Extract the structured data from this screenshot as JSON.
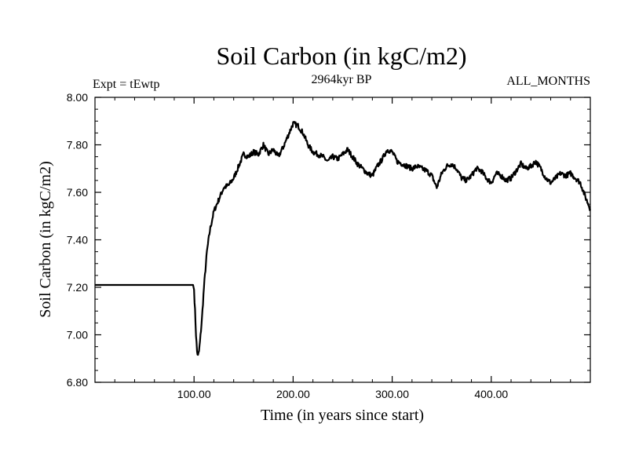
{
  "chart_data": {
    "type": "line",
    "title": "Soil Carbon (in kgC/m2)",
    "subtitle": "2964kyr BP",
    "left_label": "Expt = tEwtp",
    "right_label": "ALL_MONTHS",
    "xlabel": "Time (in years since start)",
    "ylabel": "Soil Carbon (in kgC/m2)",
    "xlim": [
      0,
      500
    ],
    "ylim": [
      6.8,
      8.0
    ],
    "x_ticks": [
      {
        "value": 100,
        "label": "100.00"
      },
      {
        "value": 200,
        "label": "200.00"
      },
      {
        "value": 300,
        "label": "300.00"
      },
      {
        "value": 400,
        "label": "400.00"
      }
    ],
    "y_ticks": [
      {
        "value": 6.8,
        "label": "6.80"
      },
      {
        "value": 7.0,
        "label": "7.00"
      },
      {
        "value": 7.2,
        "label": "7.20"
      },
      {
        "value": 7.4,
        "label": "7.40"
      },
      {
        "value": 7.6,
        "label": "7.60"
      },
      {
        "value": 7.8,
        "label": "7.80"
      },
      {
        "value": 8.0,
        "label": "8.00"
      }
    ],
    "grid": false,
    "series": [
      {
        "color": "#000000",
        "x": [
          0,
          99,
          100,
          101,
          102,
          103,
          104,
          105,
          106,
          108,
          110,
          113,
          116,
          120,
          125,
          130,
          135,
          140,
          145,
          150,
          155,
          160,
          165,
          170,
          175,
          180,
          185,
          190,
          195,
          200,
          205,
          210,
          215,
          220,
          225,
          230,
          235,
          240,
          245,
          250,
          255,
          260,
          265,
          270,
          275,
          280,
          285,
          290,
          295,
          300,
          305,
          310,
          315,
          320,
          325,
          330,
          335,
          340,
          345,
          350,
          355,
          360,
          365,
          370,
          375,
          380,
          385,
          390,
          395,
          400,
          405,
          410,
          415,
          420,
          425,
          430,
          435,
          440,
          445,
          450,
          455,
          460,
          465,
          470,
          475,
          480,
          485,
          490,
          495,
          500
        ],
        "y": [
          7.21,
          7.21,
          7.19,
          7.1,
          7.0,
          6.93,
          6.91,
          6.93,
          6.97,
          7.07,
          7.2,
          7.35,
          7.44,
          7.52,
          7.57,
          7.62,
          7.63,
          7.66,
          7.71,
          7.76,
          7.75,
          7.77,
          7.76,
          7.8,
          7.76,
          7.78,
          7.75,
          7.79,
          7.84,
          7.89,
          7.88,
          7.85,
          7.8,
          7.77,
          7.76,
          7.75,
          7.73,
          7.75,
          7.74,
          7.76,
          7.78,
          7.75,
          7.72,
          7.7,
          7.68,
          7.67,
          7.71,
          7.74,
          7.78,
          7.77,
          7.73,
          7.72,
          7.71,
          7.7,
          7.71,
          7.7,
          7.69,
          7.67,
          7.62,
          7.68,
          7.71,
          7.72,
          7.7,
          7.66,
          7.65,
          7.67,
          7.7,
          7.69,
          7.66,
          7.64,
          7.68,
          7.67,
          7.65,
          7.66,
          7.69,
          7.72,
          7.7,
          7.71,
          7.73,
          7.7,
          7.66,
          7.64,
          7.66,
          7.68,
          7.67,
          7.68,
          7.66,
          7.64,
          7.58,
          7.53
        ]
      }
    ]
  }
}
